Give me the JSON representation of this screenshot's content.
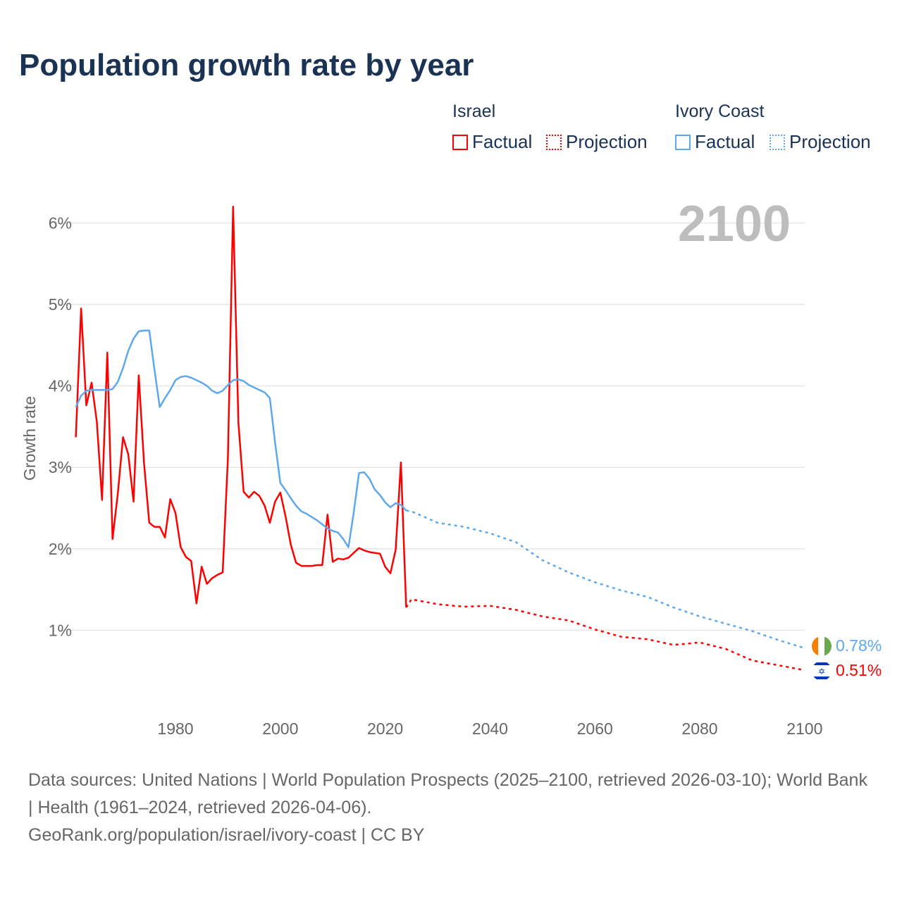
{
  "title": "Population growth rate by year",
  "legend": {
    "groups": [
      {
        "name": "Israel",
        "items": [
          "Factual",
          "Projection"
        ],
        "color": "#ff0000"
      },
      {
        "name": "Ivory Coast",
        "items": [
          "Factual",
          "Projection"
        ],
        "color": "#5ea8ec"
      }
    ]
  },
  "year_watermark": "2100",
  "end_labels": {
    "ivory_coast": "0.78%",
    "israel": "0.51%"
  },
  "footer": {
    "line1": "Data sources: United Nations | World Population Prospects (2025–2100, retrieved 2026-03-10); World Bank | Health (1961–2024, retrieved 2026-04-06).",
    "line2": "GeoRank.org/population/israel/ivory-coast | CC BY"
  },
  "chart_data": {
    "type": "line",
    "title": "Population growth rate by year",
    "xlabel": "",
    "ylabel": "Growth rate",
    "xlim": [
      1961,
      2100
    ],
    "ylim": [
      0,
      6.2
    ],
    "xticks": [
      1980,
      2000,
      2020,
      2040,
      2060,
      2080,
      2100
    ],
    "yticks": [
      1,
      2,
      3,
      4,
      5,
      6
    ],
    "ytick_labels": [
      "1%",
      "2%",
      "3%",
      "4%",
      "5%",
      "6%"
    ],
    "grid": true,
    "legend_position": "top-right",
    "series": [
      {
        "name": "Israel Factual",
        "color": "#ff0000",
        "style": "solid",
        "start_year": 1961,
        "values": [
          3.37,
          4.95,
          3.76,
          4.04,
          3.56,
          2.6,
          4.41,
          2.12,
          2.68,
          3.37,
          3.16,
          2.58,
          4.13,
          3.05,
          2.32,
          2.27,
          2.27,
          2.14,
          2.61,
          2.44,
          2.02,
          1.9,
          1.85,
          1.33,
          1.78,
          1.57,
          1.64,
          1.68,
          1.71,
          3.11,
          6.2,
          3.55,
          2.7,
          2.63,
          2.7,
          2.65,
          2.53,
          2.32,
          2.58,
          2.69,
          2.4,
          2.05,
          1.83,
          1.79,
          1.79,
          1.79,
          1.8,
          1.8,
          2.42,
          1.84,
          1.88,
          1.87,
          1.89,
          1.95,
          2.01,
          1.98,
          1.96,
          1.95,
          1.94,
          1.78,
          1.7,
          1.99,
          3.06,
          1.28
        ]
      },
      {
        "name": "Israel Projection",
        "color": "#ff0000",
        "style": "dotted",
        "x": [
          2024,
          2025,
          2030,
          2035,
          2040,
          2045,
          2050,
          2055,
          2060,
          2065,
          2070,
          2075,
          2080,
          2085,
          2090,
          2095,
          2100
        ],
        "values": [
          1.28,
          1.38,
          1.32,
          1.29,
          1.3,
          1.25,
          1.17,
          1.12,
          1.01,
          0.92,
          0.89,
          0.82,
          0.85,
          0.77,
          0.63,
          0.57,
          0.51
        ]
      },
      {
        "name": "Ivory Coast Factual",
        "color": "#5ea8ec",
        "style": "solid",
        "start_year": 1961,
        "values": [
          3.74,
          3.88,
          3.94,
          3.95,
          3.95,
          3.95,
          3.95,
          3.96,
          4.05,
          4.22,
          4.43,
          4.58,
          4.67,
          4.68,
          4.68,
          4.2,
          3.74,
          3.85,
          3.95,
          4.07,
          4.11,
          4.12,
          4.1,
          4.07,
          4.04,
          4.0,
          3.94,
          3.91,
          3.94,
          4.01,
          4.07,
          4.08,
          4.06,
          4.01,
          3.98,
          3.95,
          3.92,
          3.85,
          3.3,
          2.81,
          2.72,
          2.62,
          2.53,
          2.46,
          2.43,
          2.39,
          2.35,
          2.3,
          2.25,
          2.22,
          2.2,
          2.12,
          2.02,
          2.45,
          2.93,
          2.94,
          2.86,
          2.73,
          2.66,
          2.57,
          2.51,
          2.56,
          2.54,
          2.47
        ]
      },
      {
        "name": "Ivory Coast Projection",
        "color": "#5ea8ec",
        "style": "dotted",
        "x": [
          2024,
          2025,
          2030,
          2035,
          2040,
          2045,
          2050,
          2055,
          2060,
          2065,
          2070,
          2075,
          2080,
          2085,
          2090,
          2095,
          2100
        ],
        "values": [
          2.47,
          2.46,
          2.32,
          2.27,
          2.19,
          2.08,
          1.86,
          1.71,
          1.59,
          1.49,
          1.41,
          1.28,
          1.17,
          1.08,
          0.99,
          0.88,
          0.78
        ]
      }
    ]
  }
}
